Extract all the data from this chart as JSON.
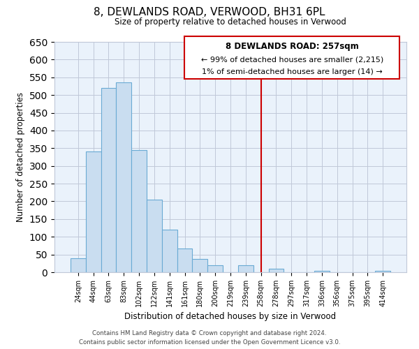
{
  "title": "8, DEWLANDS ROAD, VERWOOD, BH31 6PL",
  "subtitle": "Size of property relative to detached houses in Verwood",
  "xlabel": "Distribution of detached houses by size in Verwood",
  "ylabel": "Number of detached properties",
  "bar_labels": [
    "24sqm",
    "44sqm",
    "63sqm",
    "83sqm",
    "102sqm",
    "122sqm",
    "141sqm",
    "161sqm",
    "180sqm",
    "200sqm",
    "219sqm",
    "239sqm",
    "258sqm",
    "278sqm",
    "297sqm",
    "317sqm",
    "336sqm",
    "356sqm",
    "375sqm",
    "395sqm",
    "414sqm"
  ],
  "bar_heights": [
    40,
    340,
    520,
    535,
    345,
    205,
    120,
    66,
    38,
    20,
    0,
    20,
    0,
    10,
    0,
    0,
    3,
    0,
    0,
    0,
    3
  ],
  "bar_color": "#c9ddf0",
  "bar_edge_color": "#6aaad4",
  "ylim": [
    0,
    650
  ],
  "yticks": [
    0,
    50,
    100,
    150,
    200,
    250,
    300,
    350,
    400,
    450,
    500,
    550,
    600,
    650
  ],
  "vline_x_index": 12,
  "vline_color": "#cc0000",
  "annotation_title": "8 DEWLANDS ROAD: 257sqm",
  "annotation_line1": "← 99% of detached houses are smaller (2,215)",
  "annotation_line2": "1% of semi-detached houses are larger (14) →",
  "footer_line1": "Contains HM Land Registry data © Crown copyright and database right 2024.",
  "footer_line2": "Contains public sector information licensed under the Open Government Licence v3.0.",
  "background_color": "#ffffff",
  "axes_bg_color": "#eaf2fb",
  "grid_color": "#c0c8d8"
}
